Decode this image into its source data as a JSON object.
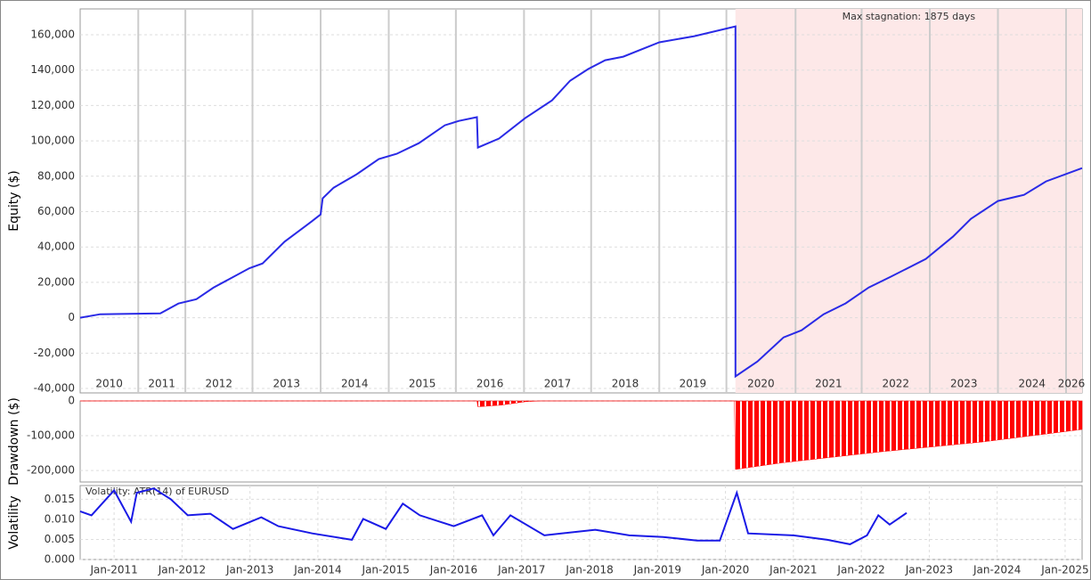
{
  "chart_data": [
    {
      "type": "line",
      "ylabel": "Equity ($)",
      "color": "#2a2ae6",
      "x": [
        0,
        20,
        80,
        98,
        116,
        133,
        169,
        182,
        204,
        231,
        240,
        242,
        253,
        276,
        298,
        316,
        338,
        364,
        378,
        396,
        397,
        418,
        444,
        471,
        489,
        507,
        524,
        542,
        578,
        613,
        654,
        654,
        676,
        702,
        720,
        742,
        764,
        787,
        809,
        844,
        871,
        889,
        916,
        942,
        964,
        1000
      ],
      "values": [
        0,
        2000,
        2500,
        8000,
        10500,
        17000,
        28000,
        30700,
        43000,
        54400,
        58400,
        67500,
        73500,
        81100,
        89700,
        92700,
        98700,
        108800,
        111300,
        113400,
        96200,
        101300,
        112800,
        122900,
        134000,
        140600,
        145600,
        147600,
        155700,
        159200,
        164700,
        -33200,
        -24700,
        -11100,
        -7100,
        2000,
        8100,
        17100,
        23200,
        33200,
        45800,
        55900,
        66000,
        69500,
        77100,
        84600
      ],
      "xlim": [
        0,
        1000
      ],
      "ylim": [
        -42500,
        174600
      ],
      "yticks": [
        {
          "value": -40000,
          "label": "-40,000"
        },
        {
          "value": -20000,
          "label": "-20,000"
        },
        0,
        {
          "value": 20000,
          "label": "20,000"
        },
        {
          "value": 40000,
          "label": "40,000"
        },
        {
          "value": 60000,
          "label": "60,000"
        },
        {
          "value": 80000,
          "label": "80,000"
        },
        {
          "value": 100000,
          "label": "100,000"
        },
        {
          "value": 120000,
          "label": "120,000"
        },
        {
          "value": 140000,
          "label": "140,000"
        },
        {
          "value": 160000,
          "label": "160,000"
        }
      ],
      "year_boundaries": [
        58,
        105,
        172,
        240,
        308,
        375,
        443,
        510,
        578,
        645,
        714,
        780,
        848,
        916,
        984
      ],
      "year_labels": [
        "2010",
        "2011",
        "2012",
        "2013",
        "2014",
        "2015",
        "2016",
        "2017",
        "2018",
        "2019",
        "2020",
        "2021",
        "2022",
        "2023",
        "2024",
        "2026"
      ],
      "stagnation": [
        654,
        1000
      ],
      "stagnation_color": "#fde8e8",
      "annotation": "Max stagnation: 1875 days",
      "grid": true
    },
    {
      "type": "area",
      "ylabel": "Drawdown ($)",
      "color": "#ff0000",
      "x": [
        0,
        396,
        397,
        420,
        445,
        460,
        653,
        654,
        700,
        800,
        900,
        1000
      ],
      "values": [
        0,
        0,
        -17000,
        -12000,
        -2000,
        0,
        0,
        -197000,
        -178000,
        -146000,
        -118000,
        -82000
      ],
      "xlim": [
        0,
        1000
      ],
      "ylim": [
        -233000,
        0
      ],
      "yticks": [
        0,
        {
          "value": -100000,
          "label": "-100,000"
        },
        {
          "value": -200000,
          "label": "-200,000"
        }
      ],
      "grid": true
    },
    {
      "type": "line",
      "ylabel": "Volatility",
      "annotation": "Volatility: ATR(14) of EURUSD",
      "color": "#1a1ae6",
      "x": [
        "2010-07",
        "2010-09",
        "2011-01",
        "2011-04",
        "2011-05",
        "2011-08",
        "2011-11",
        "2012-02",
        "2012-06",
        "2012-10",
        "2013-03",
        "2013-06",
        "2013-12",
        "2014-07",
        "2014-09",
        "2015-01",
        "2015-04",
        "2015-07",
        "2016-01",
        "2016-06",
        "2016-08",
        "2016-11",
        "2017-05",
        "2018-02",
        "2018-08",
        "2019-02",
        "2019-08",
        "2019-12",
        "2020-03",
        "2020-05",
        "2021-01",
        "2021-07",
        "2021-11",
        "2022-02",
        "2022-04",
        "2022-06",
        "2022-09"
      ],
      "values": [
        0.012,
        0.011,
        0.0172,
        0.0094,
        0.0166,
        0.0177,
        0.015,
        0.011,
        0.0114,
        0.0076,
        0.0105,
        0.0083,
        0.0065,
        0.0049,
        0.0101,
        0.0076,
        0.0139,
        0.011,
        0.0083,
        0.011,
        0.006,
        0.011,
        0.006,
        0.0074,
        0.006,
        0.0056,
        0.0047,
        0.0047,
        0.0166,
        0.0065,
        0.006,
        0.0049,
        0.0038,
        0.006,
        0.011,
        0.0087,
        0.0116
      ],
      "xlim": [
        "2010-07",
        "2025-04"
      ],
      "ylim": [
        0,
        0.0184
      ],
      "yticks": [
        {
          "value": 0,
          "label": "0.000"
        },
        0.005,
        {
          "value": 0.01,
          "label": "0.010"
        },
        0.015
      ],
      "xticks": [
        {
          "value": "2011-01",
          "label": "Jan-2011"
        },
        {
          "value": "2012-01",
          "label": "Jan-2012"
        },
        {
          "value": "2013-01",
          "label": "Jan-2013"
        },
        {
          "value": "2014-01",
          "label": "Jan-2014"
        },
        {
          "value": "2015-01",
          "label": "Jan-2015"
        },
        {
          "value": "2016-01",
          "label": "Jan-2016"
        },
        {
          "value": "2017-01",
          "label": "Jan-2017"
        },
        {
          "value": "2018-01",
          "label": "Jan-2018"
        },
        {
          "value": "2019-01",
          "label": "Jan-2019"
        },
        {
          "value": "2020-01",
          "label": "Jan-2020"
        },
        {
          "value": "2021-01",
          "label": "Jan-2021"
        },
        {
          "value": "2022-01",
          "label": "Jan-2022"
        },
        {
          "value": "2023-01",
          "label": "Jan-2023"
        },
        {
          "value": "2024-01",
          "label": "Jan-2024"
        },
        {
          "value": "2025-01",
          "label": "Jan-2025"
        }
      ],
      "grid": true
    }
  ]
}
